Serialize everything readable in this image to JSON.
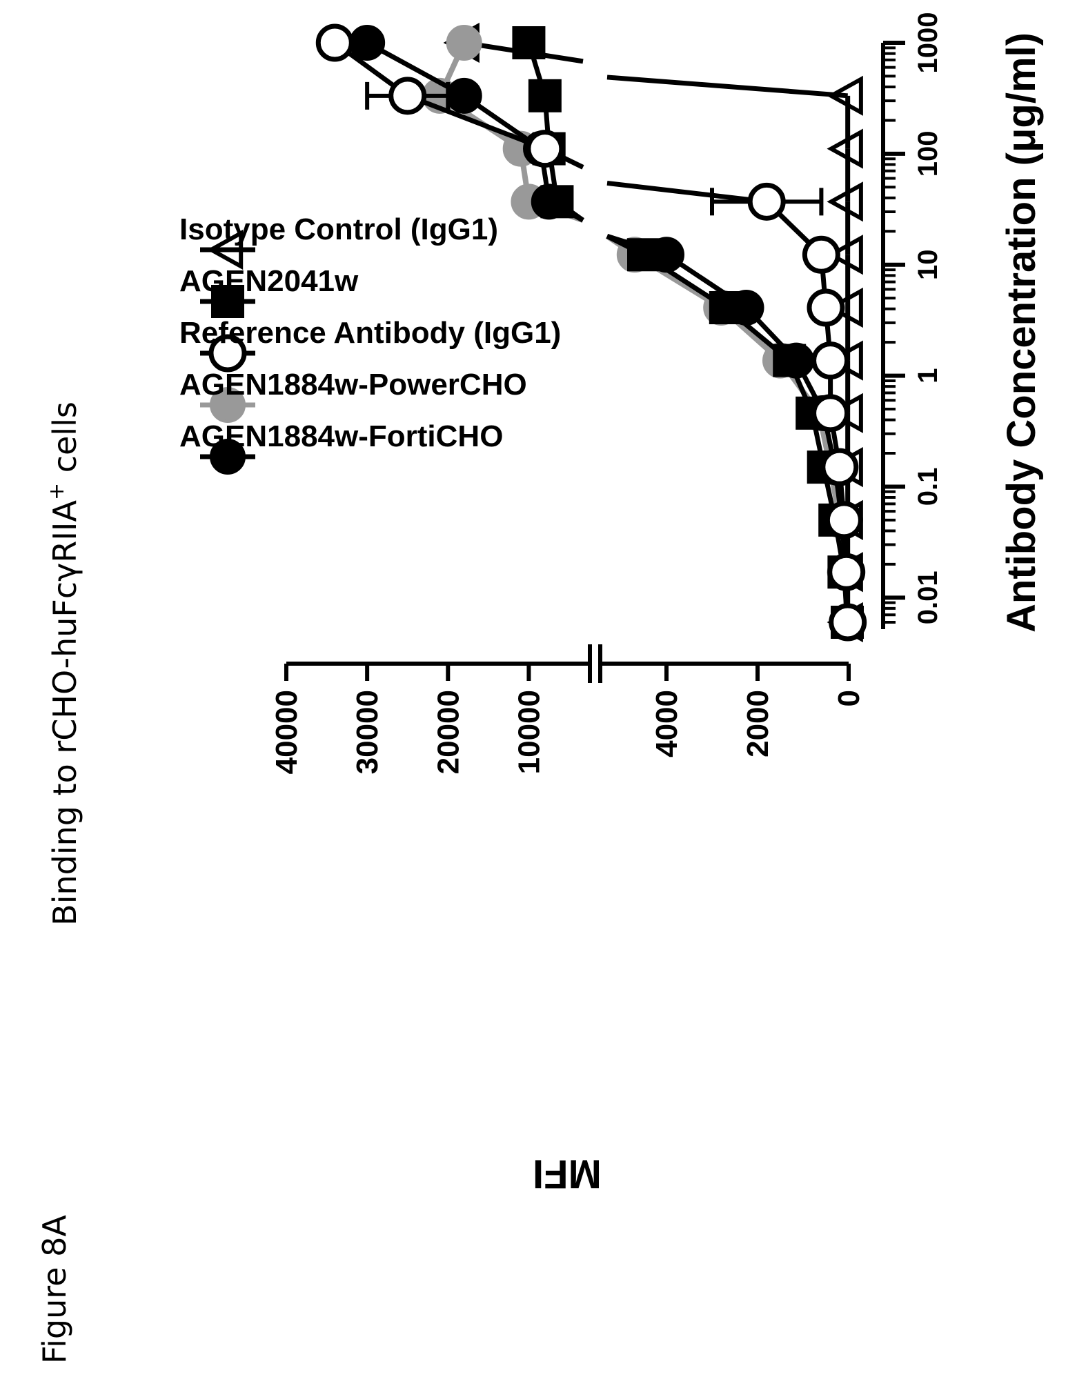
{
  "figure_label": "Figure 8A",
  "chart_data": {
    "type": "scatter",
    "title": "Binding to rCHO-huFcγRIIA⁺ cells",
    "xlabel": "Antibody Concentration (μg/ml)",
    "ylabel": "MFI",
    "xscale": "log",
    "xlim": [
      0.006,
      1000
    ],
    "x_ticks": [
      0.01,
      0.1,
      1,
      10,
      100,
      1000
    ],
    "x_tick_labels": [
      "0.01",
      "0.1",
      "1",
      "10",
      "100",
      "1000"
    ],
    "y_axis_break": true,
    "ylim_lower": [
      0,
      5000
    ],
    "ylim_upper": [
      5000,
      40000
    ],
    "y_ticks_lower": [
      0,
      2000,
      4000
    ],
    "y_tick_labels_lower": [
      "0",
      "2000",
      "4000"
    ],
    "y_ticks_upper": [
      10000,
      20000,
      30000,
      40000
    ],
    "y_tick_labels_upper": [
      "10000",
      "20000",
      "30000",
      "40000"
    ],
    "legend_position": "top-left",
    "x": [
      0.006,
      0.017,
      0.05,
      0.15,
      0.46,
      1.37,
      4.1,
      12.3,
      37,
      111,
      333,
      1000
    ],
    "series": [
      {
        "name": "AGEN1884w-FortiCHO",
        "marker": "filled-circle",
        "color": "#000000",
        "y": [
          20,
          60,
          150,
          300,
          550,
          1150,
          2250,
          4000,
          7500,
          8500,
          18000,
          30000
        ]
      },
      {
        "name": "AGEN1884w-PowerCHO",
        "marker": "filled-circle",
        "color": "#999999",
        "y": [
          30,
          80,
          200,
          400,
          650,
          1500,
          2800,
          4700,
          10000,
          11000,
          21000,
          18000
        ]
      },
      {
        "name": "Reference Antibody (IgG1)",
        "marker": "open-circle",
        "color": "#000000",
        "y": [
          20,
          50,
          100,
          200,
          400,
          400,
          500,
          600,
          1800,
          8000,
          25000,
          34000
        ],
        "y_err": [
          0,
          0,
          0,
          0,
          0,
          0,
          0,
          0,
          1200,
          0,
          5000,
          0
        ]
      },
      {
        "name": "AGEN2041w",
        "marker": "filled-square",
        "color": "#000000",
        "y": [
          30,
          100,
          300,
          550,
          800,
          1300,
          2700,
          4500,
          6500,
          7500,
          8000,
          10000
        ]
      },
      {
        "name": "Isotype Control (IgG1)",
        "marker": "open-triangle",
        "color": "#000000",
        "y": [
          20,
          20,
          20,
          20,
          20,
          20,
          20,
          20,
          20,
          20,
          20,
          18000
        ]
      }
    ]
  }
}
